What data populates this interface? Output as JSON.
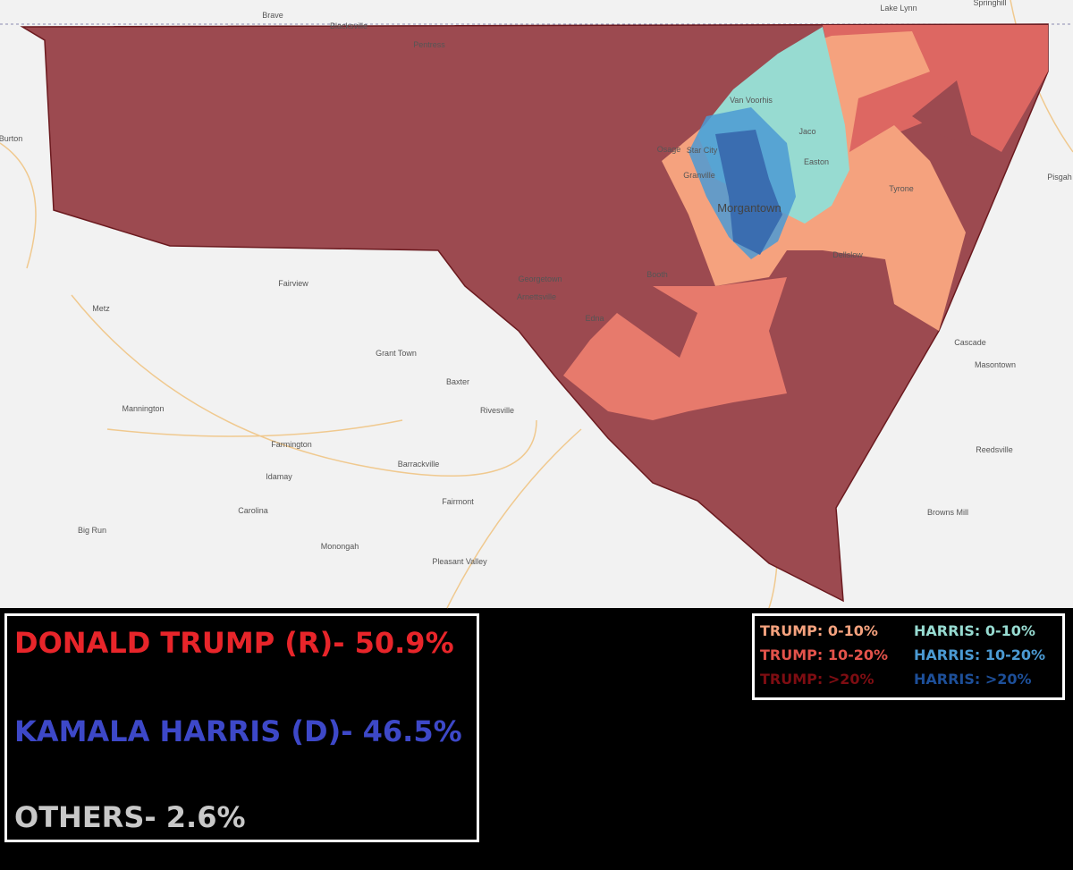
{
  "map_labels": [
    "Brave",
    "Blacksville",
    "Pentress",
    "Van Voorhis",
    "Jaco",
    "Osage",
    "Star City",
    "Easton",
    "Granville",
    "Morgantown",
    "Tyrone",
    "Dellslow",
    "Booth",
    "Georgetown",
    "Arnettsville",
    "Edna",
    "Lake Lynn",
    "Springhill",
    "Pisgah",
    "Cascade",
    "Masontown",
    "Reedsville",
    "Browns Mill",
    "Fairview",
    "Metz",
    "Grant Town",
    "Baxter",
    "Rivesville",
    "Mannington",
    "Farmington",
    "Idamay",
    "Barrackville",
    "Fairmont",
    "Carolina",
    "Big Run",
    "Monongah",
    "Pleasant Valley",
    "Burton"
  ],
  "results": [
    "DONALD TRUMP (R)- 50.9%",
    "KAMALA HARRIS (D)- 46.5%",
    "OTHERS- 2.6%"
  ],
  "legend": [
    {
      "label": "TRUMP: 0-10%",
      "color": "#f5a27e"
    },
    {
      "label": "TRUMP: 10-20%",
      "color": "#e4534b"
    },
    {
      "label": "TRUMP: >20%",
      "color": "#7e0d12"
    },
    {
      "label": "HARRIS: 0-10%",
      "color": "#97dbd1"
    },
    {
      "label": "HARRIS: 10-20%",
      "color": "#4b9ad3"
    },
    {
      "label": "HARRIS: >20%",
      "color": "#1d4f99"
    }
  ]
}
